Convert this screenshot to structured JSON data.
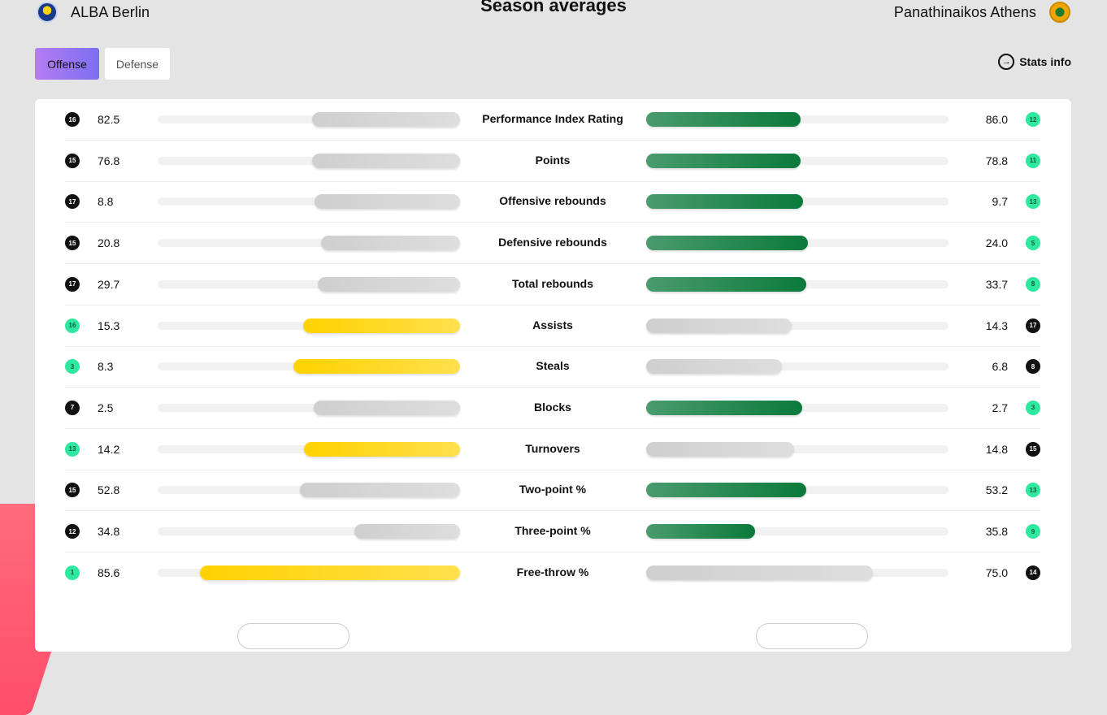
{
  "header": {
    "title": "Season averages",
    "home_team": {
      "name": "ALBA Berlin",
      "logo_icon": "alba-berlin-logo-icon"
    },
    "away_team": {
      "name": "Panathinaikos Athens",
      "logo_icon": "panathinaikos-logo-icon"
    }
  },
  "tabs": [
    {
      "label": "Offense",
      "active": true
    },
    {
      "label": "Defense",
      "active": false
    }
  ],
  "stats_info": {
    "label": "Stats info",
    "icon": "arrow-circle-right-icon"
  },
  "colors": {
    "active_tab": "#9b77f1",
    "home_leader_bar": "#ffd700",
    "away_leader_bar": "#0f7a3c",
    "neutral_bar": "#d6d6d6",
    "rank_top": "#2ee8a0",
    "rank_default": "#111111"
  },
  "stats": [
    {
      "label": "Performance Index Rating",
      "home_rank": "16",
      "home_value": "82.5",
      "home_bar": 0.49,
      "away_value": "86.0",
      "away_rank": "12",
      "away_bar": 0.51,
      "leader": "away",
      "home_rank_top": false,
      "away_rank_top": true
    },
    {
      "label": "Points",
      "home_rank": "15",
      "home_value": "76.8",
      "home_bar": 0.49,
      "away_value": "78.8",
      "away_rank": "11",
      "away_bar": 0.51,
      "leader": "away",
      "home_rank_top": false,
      "away_rank_top": true
    },
    {
      "label": "Offensive rebounds",
      "home_rank": "17",
      "home_value": "8.8",
      "home_bar": 0.48,
      "away_value": "9.7",
      "away_rank": "13",
      "away_bar": 0.52,
      "leader": "away",
      "home_rank_top": false,
      "away_rank_top": true
    },
    {
      "label": "Defensive rebounds",
      "home_rank": "15",
      "home_value": "20.8",
      "home_bar": 0.46,
      "away_value": "24.0",
      "away_rank": "5",
      "away_bar": 0.535,
      "leader": "away",
      "home_rank_top": false,
      "away_rank_top": true
    },
    {
      "label": "Total rebounds",
      "home_rank": "17",
      "home_value": "29.7",
      "home_bar": 0.47,
      "away_value": "33.7",
      "away_rank": "8",
      "away_bar": 0.53,
      "leader": "away",
      "home_rank_top": false,
      "away_rank_top": true
    },
    {
      "label": "Assists",
      "home_rank": "16",
      "home_value": "15.3",
      "home_bar": 0.52,
      "away_value": "14.3",
      "away_rank": "17",
      "away_bar": 0.48,
      "leader": "home",
      "home_rank_top": true,
      "away_rank_top": false
    },
    {
      "label": "Steals",
      "home_rank": "3",
      "home_value": "8.3",
      "home_bar": 0.55,
      "away_value": "6.8",
      "away_rank": "8",
      "away_bar": 0.45,
      "leader": "home",
      "home_rank_top": true,
      "away_rank_top": false
    },
    {
      "label": "Blocks",
      "home_rank": "7",
      "home_value": "2.5",
      "home_bar": 0.485,
      "away_value": "2.7",
      "away_rank": "3",
      "away_bar": 0.515,
      "leader": "away",
      "home_rank_top": false,
      "away_rank_top": true
    },
    {
      "label": "Turnovers",
      "home_rank": "13",
      "home_value": "14.2",
      "home_bar": 0.515,
      "away_value": "14.8",
      "away_rank": "15",
      "away_bar": 0.49,
      "leader": "home",
      "home_rank_top": true,
      "away_rank_top": false
    },
    {
      "label": "Two-point %",
      "home_rank": "15",
      "home_value": "52.8",
      "home_bar": 0.53,
      "away_value": "53.2",
      "away_rank": "13",
      "away_bar": 0.53,
      "leader": "away",
      "home_rank_top": false,
      "away_rank_top": true
    },
    {
      "label": "Three-point %",
      "home_rank": "12",
      "home_value": "34.8",
      "home_bar": 0.35,
      "away_value": "35.8",
      "away_rank": "9",
      "away_bar": 0.36,
      "leader": "away",
      "home_rank_top": false,
      "away_rank_top": true
    },
    {
      "label": "Free-throw %",
      "home_rank": "1",
      "home_value": "85.6",
      "home_bar": 0.86,
      "away_value": "75.0",
      "away_rank": "14",
      "away_bar": 0.75,
      "leader": "home",
      "home_rank_top": true,
      "away_rank_top": false
    }
  ]
}
